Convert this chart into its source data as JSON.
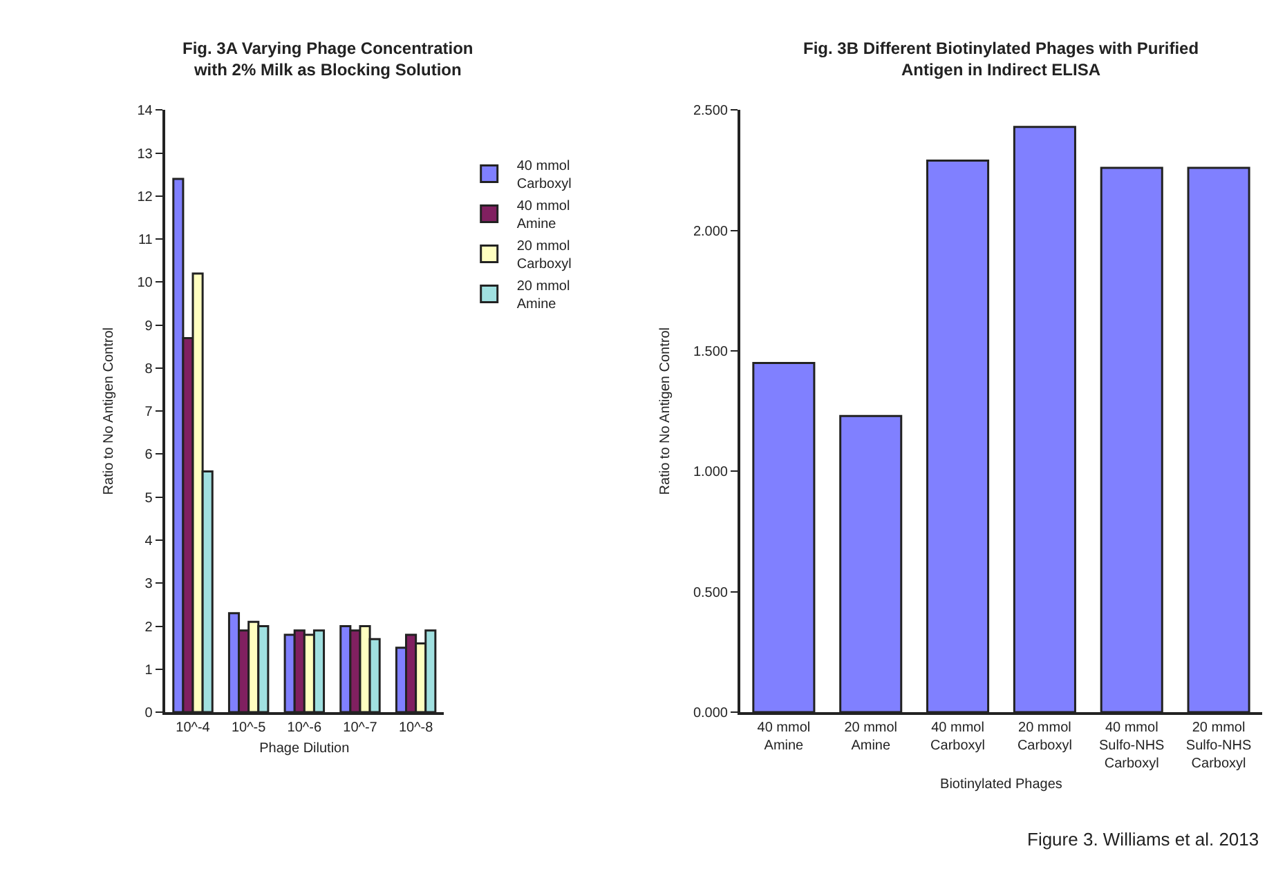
{
  "chart_data": [
    {
      "type": "bar",
      "title": "Fig. 3A Varying Phage Concentration\nwith 2% Milk as Blocking Solution",
      "xlabel": "Phage Dilution",
      "ylabel": "Ratio to No Antigen Control",
      "categories": [
        "10^-4",
        "10^-5",
        "10^-6",
        "10^-7",
        "10^-8"
      ],
      "series": [
        {
          "name": "40 mmol\nCarboxyl",
          "color": "#8080ff",
          "values": [
            12.4,
            2.3,
            1.8,
            2.0,
            1.5
          ]
        },
        {
          "name": "40 mmol\nAmine",
          "color": "#802060",
          "values": [
            8.7,
            1.9,
            1.9,
            1.9,
            1.8
          ]
        },
        {
          "name": "20 mmol\nCarboxyl",
          "color": "#ffffc0",
          "values": [
            10.2,
            2.1,
            1.8,
            2.0,
            1.6
          ]
        },
        {
          "name": "20 mmol\nAmine",
          "color": "#a0e0e0",
          "values": [
            5.6,
            2.0,
            1.9,
            1.7,
            1.9
          ]
        }
      ],
      "ylim": [
        0,
        14
      ],
      "yticks": [
        0,
        1,
        2,
        3,
        4,
        5,
        6,
        7,
        8,
        9,
        10,
        11,
        12,
        13,
        14
      ],
      "legend": "right"
    },
    {
      "type": "bar",
      "title": "Fig. 3B Different Biotinylated Phages with Purified\nAntigen in Indirect ELISA",
      "xlabel": "Biotinylated Phages",
      "ylabel": "Ratio to No Antigen Control",
      "categories": [
        "40 mmol\nAmine",
        "20 mmol\nAmine",
        "40 mmol\nCarboxyl",
        "20 mmol\nCarboxyl",
        "40 mmol\nSulfo-NHS\nCarboxyl",
        "20 mmol\nSulfo-NHS\nCarboxyl"
      ],
      "values": [
        1.45,
        1.23,
        2.29,
        2.43,
        2.26,
        2.26
      ],
      "color": "#8080ff",
      "ylim": [
        0,
        2.5
      ],
      "yticks": [
        {
          "value": 0,
          "label": "0.000"
        },
        {
          "value": 0.5,
          "label": "0.500"
        },
        {
          "value": 1,
          "label": "1.000"
        },
        {
          "value": 1.5,
          "label": "1.500"
        },
        {
          "value": 2,
          "label": "2.000"
        },
        {
          "value": 2.5,
          "label": "2.500"
        }
      ],
      "annotations": [
        "Figure 3. Williams et al. 2013"
      ]
    }
  ]
}
